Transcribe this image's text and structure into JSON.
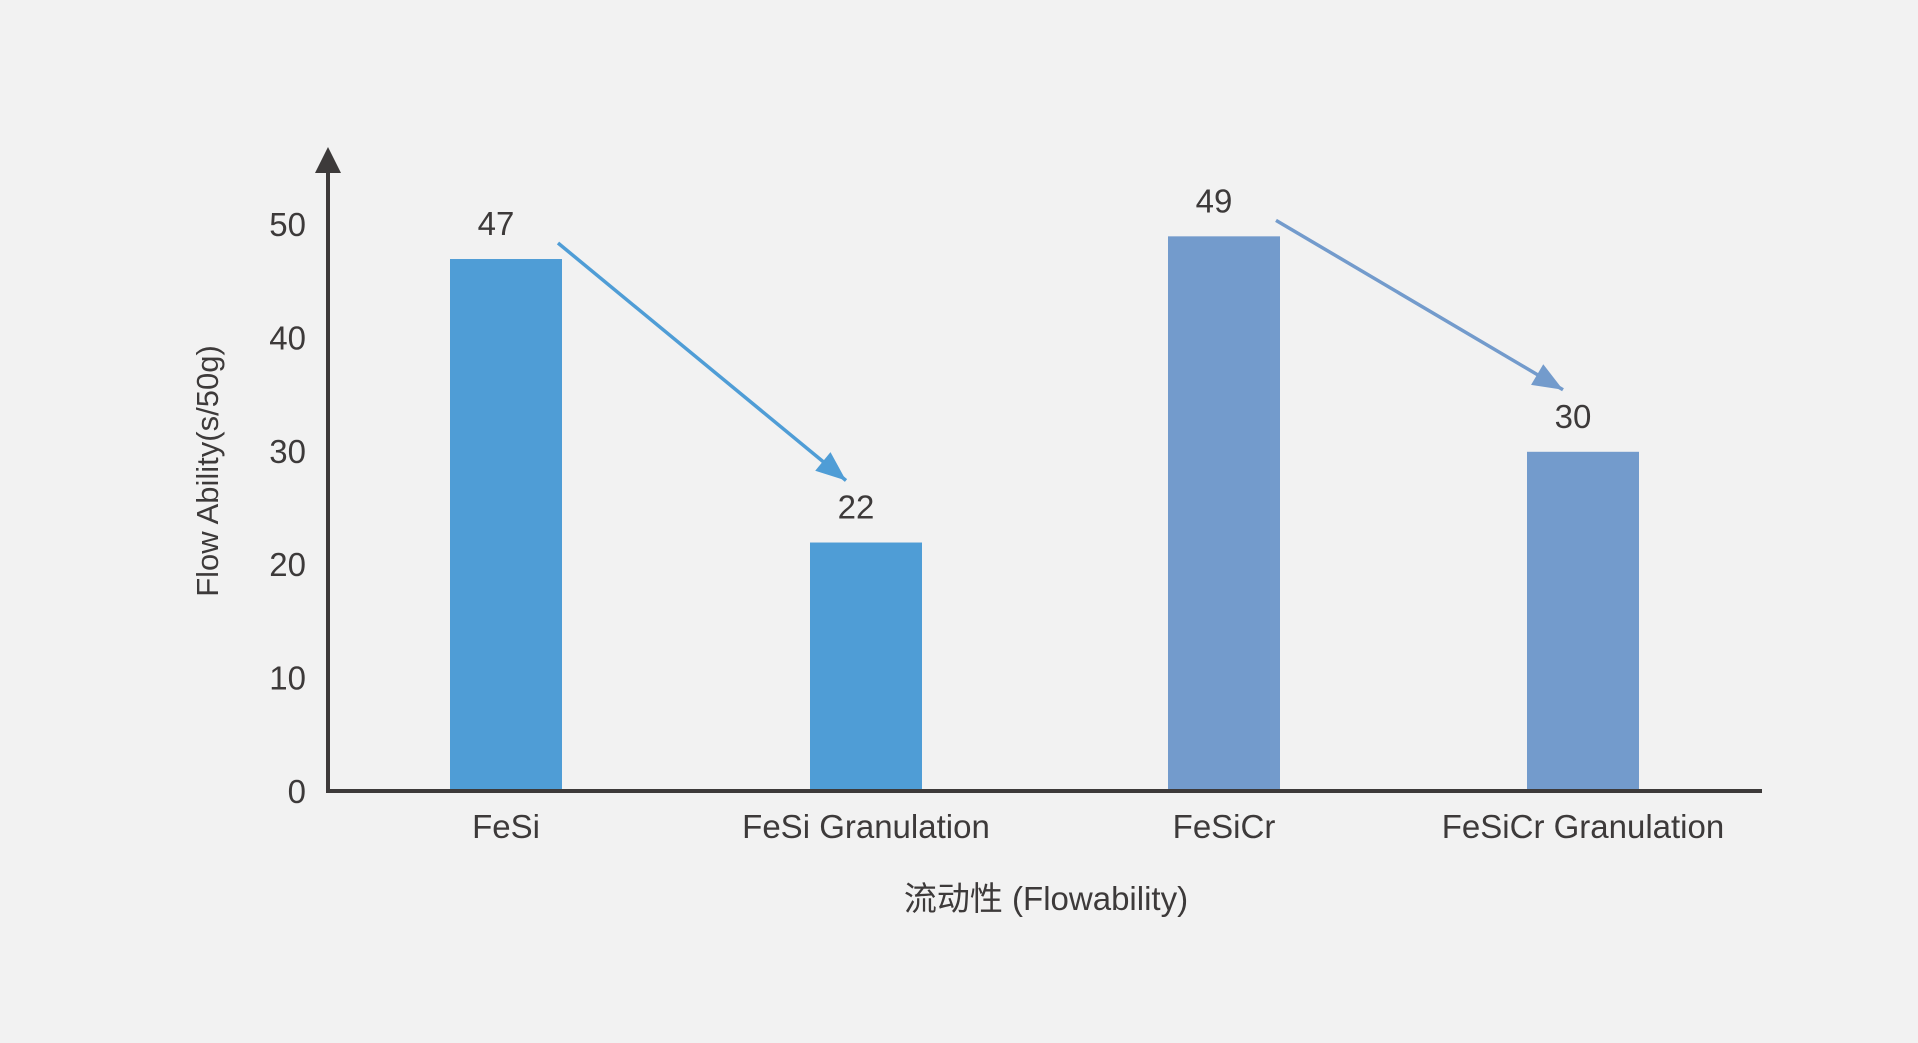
{
  "chart_data": {
    "type": "bar",
    "title": "",
    "xlabel": "流动性 (Flowability)",
    "ylabel": "Flow Ability(s/50g)",
    "categories": [
      "FeSi",
      "FeSi Granulation",
      "FeSiCr",
      "FeSiCr Granulation"
    ],
    "values": [
      47,
      22,
      49,
      30
    ],
    "data_labels": [
      "47",
      "22",
      "49",
      "30"
    ],
    "bar_colors": [
      "#4f9dd6",
      "#4f9dd6",
      "#739bcc",
      "#739bcc"
    ],
    "ylim": [
      0,
      55
    ],
    "yticks": [
      0,
      10,
      20,
      30,
      40,
      50
    ],
    "ytick_labels": [
      "0",
      "10",
      "20",
      "30",
      "40",
      "50"
    ],
    "grid": false,
    "legend": "none",
    "annotations": [
      {
        "type": "arrow",
        "from": "FeSi",
        "to": "FeSi Granulation",
        "color": "#4f9dd6"
      },
      {
        "type": "arrow",
        "from": "FeSiCr",
        "to": "FeSiCr Granulation",
        "color": "#739bcc"
      }
    ],
    "axis_color": "#3d3a3a",
    "background": "#f2f2f2"
  }
}
